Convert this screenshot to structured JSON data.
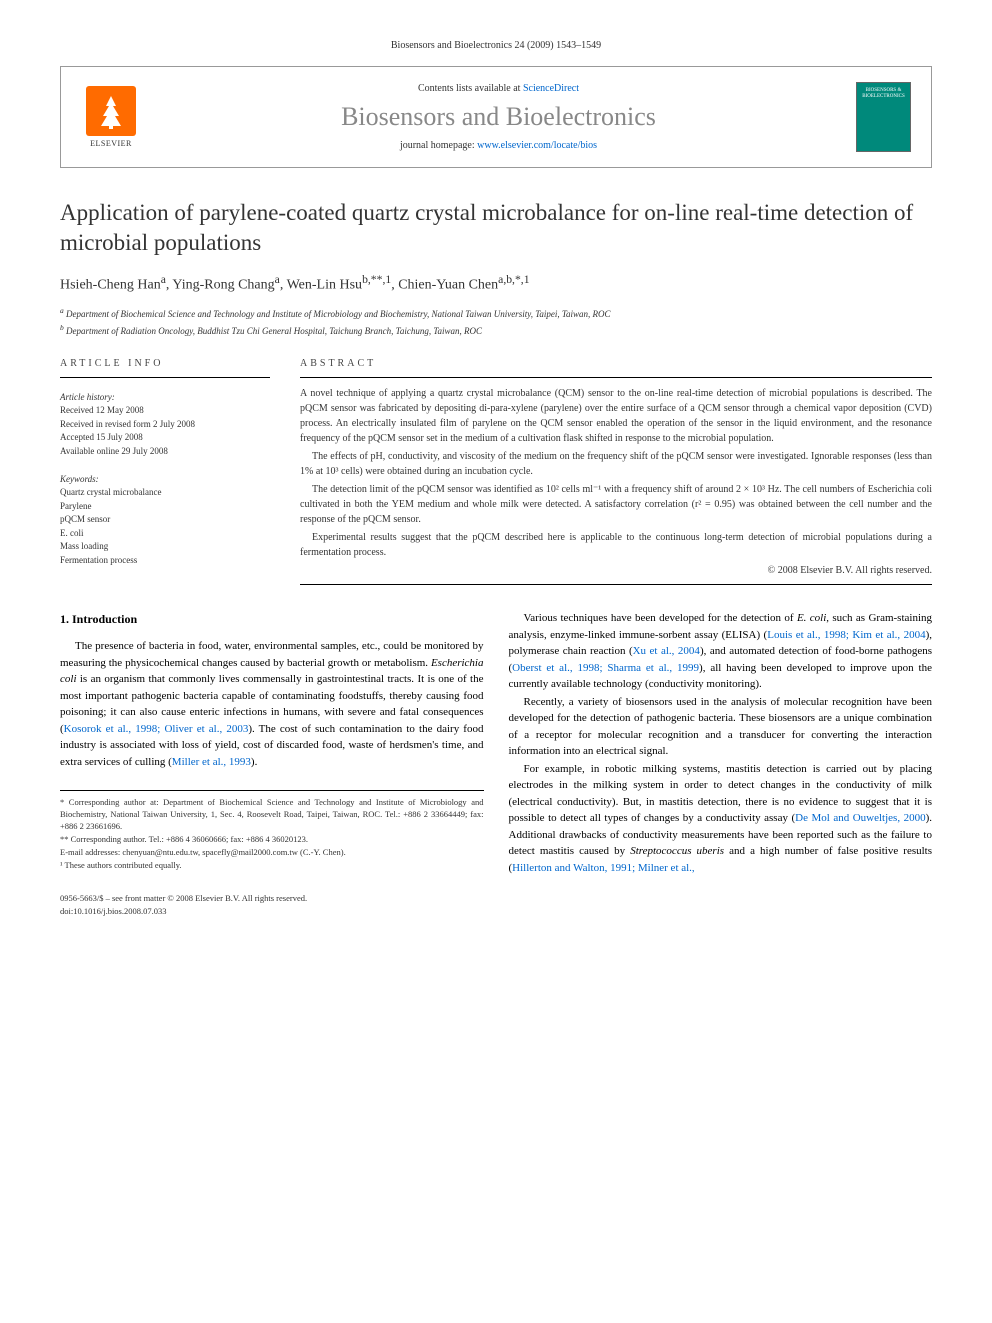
{
  "running_header": "Biosensors and Bioelectronics 24 (2009) 1543–1549",
  "header": {
    "contents_line_prefix": "Contents lists available at ",
    "sciencedirect": "ScienceDirect",
    "journal_name": "Biosensors and Bioelectronics",
    "homepage_prefix": "journal homepage: ",
    "homepage_url": "www.elsevier.com/locate/bios",
    "elsevier_label": "ELSEVIER",
    "cover_text": "BIOSENSORS & BIOELECTRONICS"
  },
  "title": "Application of parylene-coated quartz crystal microbalance for on-line real-time detection of microbial populations",
  "authors_html": "Hsieh-Cheng Han<sup>a</sup>, Ying-Rong Chang<sup>a</sup>, Wen-Lin Hsu<sup>b,**,1</sup>, Chien-Yuan Chen<sup>a,b,*,1</sup>",
  "affiliations": [
    "a Department of Biochemical Science and Technology and Institute of Microbiology and Biochemistry, National Taiwan University, Taipei, Taiwan, ROC",
    "b Department of Radiation Oncology, Buddhist Tzu Chi General Hospital, Taichung Branch, Taichung, Taiwan, ROC"
  ],
  "article_info": {
    "heading": "ARTICLE INFO",
    "history_label": "Article history:",
    "history": [
      "Received 12 May 2008",
      "Received in revised form 2 July 2008",
      "Accepted 15 July 2008",
      "Available online 29 July 2008"
    ],
    "keywords_label": "Keywords:",
    "keywords": [
      "Quartz crystal microbalance",
      "Parylene",
      "pQCM sensor",
      "E. coli",
      "Mass loading",
      "Fermentation process"
    ]
  },
  "abstract": {
    "heading": "ABSTRACT",
    "paragraphs": [
      "A novel technique of applying a quartz crystal microbalance (QCM) sensor to the on-line real-time detection of microbial populations is described. The pQCM sensor was fabricated by depositing di-para-xylene (parylene) over the entire surface of a QCM sensor through a chemical vapor deposition (CVD) process. An electrically insulated film of parylene on the QCM sensor enabled the operation of the sensor in the liquid environment, and the resonance frequency of the pQCM sensor set in the medium of a cultivation flask shifted in response to the microbial population.",
      "The effects of pH, conductivity, and viscosity of the medium on the frequency shift of the pQCM sensor were investigated. Ignorable responses (less than 1% at 10³ cells) were obtained during an incubation cycle.",
      "The detection limit of the pQCM sensor was identified as 10² cells ml⁻¹ with a frequency shift of around 2 × 10³ Hz. The cell numbers of Escherichia coli cultivated in both the YEM medium and whole milk were detected. A satisfactory correlation (r² = 0.95) was obtained between the cell number and the response of the pQCM sensor.",
      "Experimental results suggest that the pQCM described here is applicable to the continuous long-term detection of microbial populations during a fermentation process."
    ],
    "copyright": "© 2008 Elsevier B.V. All rights reserved."
  },
  "section1": {
    "heading": "1. Introduction",
    "col1_paras": [
      "The presence of bacteria in food, water, environmental samples, etc., could be monitored by measuring the physicochemical changes caused by bacterial growth or metabolism. <span class=\"ital\">Escherichia coli</span> is an organism that commonly lives commensally in gastrointestinal tracts. It is one of the most important pathogenic bacteria capable of contaminating foodstuffs, thereby causing food poisoning; it can also cause enteric infections in humans, with severe and fatal consequences (<span class=\"ref-link\">Kosorok et al., 1998; Oliver et al., 2003</span>). The cost of such contamination to the dairy food industry is associated with loss of yield, cost of discarded food, waste of herdsmen's time, and extra services of culling (<span class=\"ref-link\">Miller et al., 1993</span>)."
    ],
    "col2_paras": [
      "Various techniques have been developed for the detection of <span class=\"ital\">E. coli</span>, such as Gram-staining analysis, enzyme-linked immune-sorbent assay (ELISA) (<span class=\"ref-link\">Louis et al., 1998; Kim et al., 2004</span>), polymerase chain reaction (<span class=\"ref-link\">Xu et al., 2004</span>), and automated detection of food-borne pathogens (<span class=\"ref-link\">Oberst et al., 1998; Sharma et al., 1999</span>), all having been developed to improve upon the currently available technology (conductivity monitoring).",
      "Recently, a variety of biosensors used in the analysis of molecular recognition have been developed for the detection of pathogenic bacteria. These biosensors are a unique combination of a receptor for molecular recognition and a transducer for converting the interaction information into an electrical signal.",
      "For example, in robotic milking systems, mastitis detection is carried out by placing electrodes in the milking system in order to detect changes in the conductivity of milk (electrical conductivity). But, in mastitis detection, there is no evidence to suggest that it is possible to detect all types of changes by a conductivity assay (<span class=\"ref-link\">De Mol and Ouweltjes, 2000</span>). Additional drawbacks of conductivity measurements have been reported such as the failure to detect mastitis caused by <span class=\"ital\">Streptococcus uberis</span> and a high number of false positive results (<span class=\"ref-link\">Hillerton and Walton, 1991; Milner et al.,</span>"
    ]
  },
  "footnotes": [
    "* Corresponding author at: Department of Biochemical Science and Technology and Institute of Microbiology and Biochemistry, National Taiwan University, 1, Sec. 4, Roosevelt Road, Taipei, Taiwan, ROC. Tel.: +886 2 33664449; fax: +886 2 23661696.",
    "** Corresponding author. Tel.: +886 4 36060666; fax: +886 4 36020123.",
    "E-mail addresses: chenyuan@ntu.edu.tw, spacefly@mail2000.com.tw (C.-Y. Chen).",
    "¹ These authors contributed equally."
  ],
  "footer": {
    "left": "0956-5663/$ – see front matter © 2008 Elsevier B.V. All rights reserved.",
    "doi": "doi:10.1016/j.bios.2008.07.033"
  }
}
